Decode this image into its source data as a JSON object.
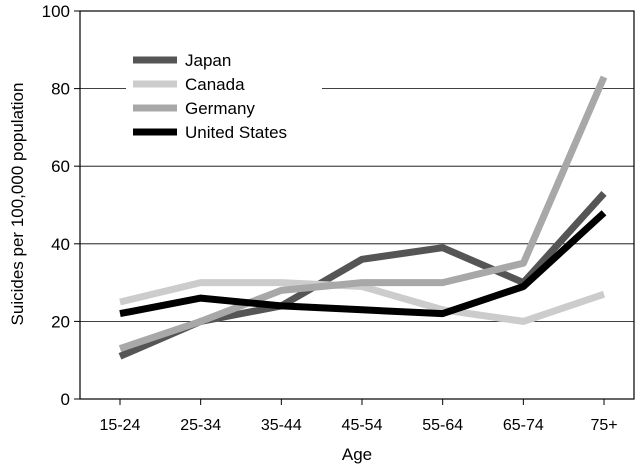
{
  "chart_data": {
    "type": "line",
    "title": "",
    "xlabel": "Age",
    "ylabel": "Suicides per 100,000 population",
    "categories": [
      "15-24",
      "25-34",
      "35-44",
      "45-54",
      "55-64",
      "65-74",
      "75+"
    ],
    "ylim": [
      0,
      100
    ],
    "yticks": [
      0,
      20,
      40,
      60,
      80,
      100
    ],
    "grid": "horizontal",
    "legend_position": "top-left",
    "series": [
      {
        "name": "Japan",
        "color": "#555555",
        "values": [
          11,
          20,
          24,
          36,
          39,
          30,
          53
        ]
      },
      {
        "name": "Canada",
        "color": "#cccccc",
        "values": [
          25,
          30,
          30,
          29,
          23,
          20,
          27
        ]
      },
      {
        "name": "Germany",
        "color": "#a8a8a8",
        "values": [
          13,
          20,
          28,
          30,
          30,
          35,
          83
        ]
      },
      {
        "name": "United States",
        "color": "#000000",
        "values": [
          22,
          26,
          24,
          23,
          22,
          29,
          48
        ]
      }
    ]
  }
}
